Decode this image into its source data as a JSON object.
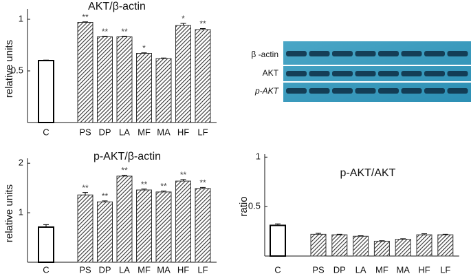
{
  "chart_data": [
    {
      "type": "bar",
      "title": "AKT/β-actin",
      "y_label": "relative units",
      "categories": [
        "C",
        "PS",
        "DP",
        "LA",
        "MF",
        "MA",
        "HF",
        "LF"
      ],
      "values": [
        0.6,
        0.97,
        0.83,
        0.83,
        0.67,
        0.62,
        0.94,
        0.9
      ],
      "errors": [
        0.005,
        0.005,
        0.005,
        0.005,
        0.005,
        0.005,
        0.02,
        0.01
      ],
      "annotations": [
        null,
        "**",
        "**",
        "**",
        "*",
        null,
        "*",
        "**"
      ],
      "color": "#333333",
      "ylim": [
        0,
        1.1
      ],
      "yticks": [
        0.5,
        1
      ]
    },
    {
      "type": "bar",
      "title": "p-AKT/β-actin",
      "y_label": "relative units",
      "categories": [
        "C",
        "PS",
        "DP",
        "LA",
        "MF",
        "MA",
        "HF",
        "LF"
      ],
      "values": [
        0.71,
        1.36,
        1.22,
        1.74,
        1.46,
        1.42,
        1.64,
        1.49
      ],
      "errors": [
        0.05,
        0.05,
        0.02,
        0.02,
        0.02,
        0.02,
        0.03,
        0.02
      ],
      "annotations": [
        null,
        "**",
        "**",
        "**",
        "**",
        "**",
        "**",
        "**"
      ],
      "color": "#333333",
      "ylim": [
        0,
        2.1
      ],
      "yticks": [
        1,
        2
      ]
    },
    {
      "type": "bar",
      "title": "p-AKT/AKT",
      "y_label": "ratio",
      "categories": [
        "C",
        "PS",
        "DP",
        "LA",
        "MF",
        "MA",
        "HF",
        "LF"
      ],
      "values": [
        0.31,
        0.22,
        0.215,
        0.2,
        0.15,
        0.17,
        0.215,
        0.215
      ],
      "errors": [
        0.015,
        0.01,
        0.005,
        0.005,
        0.005,
        0.005,
        0.01,
        0.005
      ],
      "color": "#333333",
      "ylim": [
        0,
        1.03
      ],
      "yticks": [
        0.5,
        1
      ]
    }
  ],
  "blot": {
    "labels": [
      "β -actin",
      "AKT",
      "p-AKT"
    ]
  }
}
